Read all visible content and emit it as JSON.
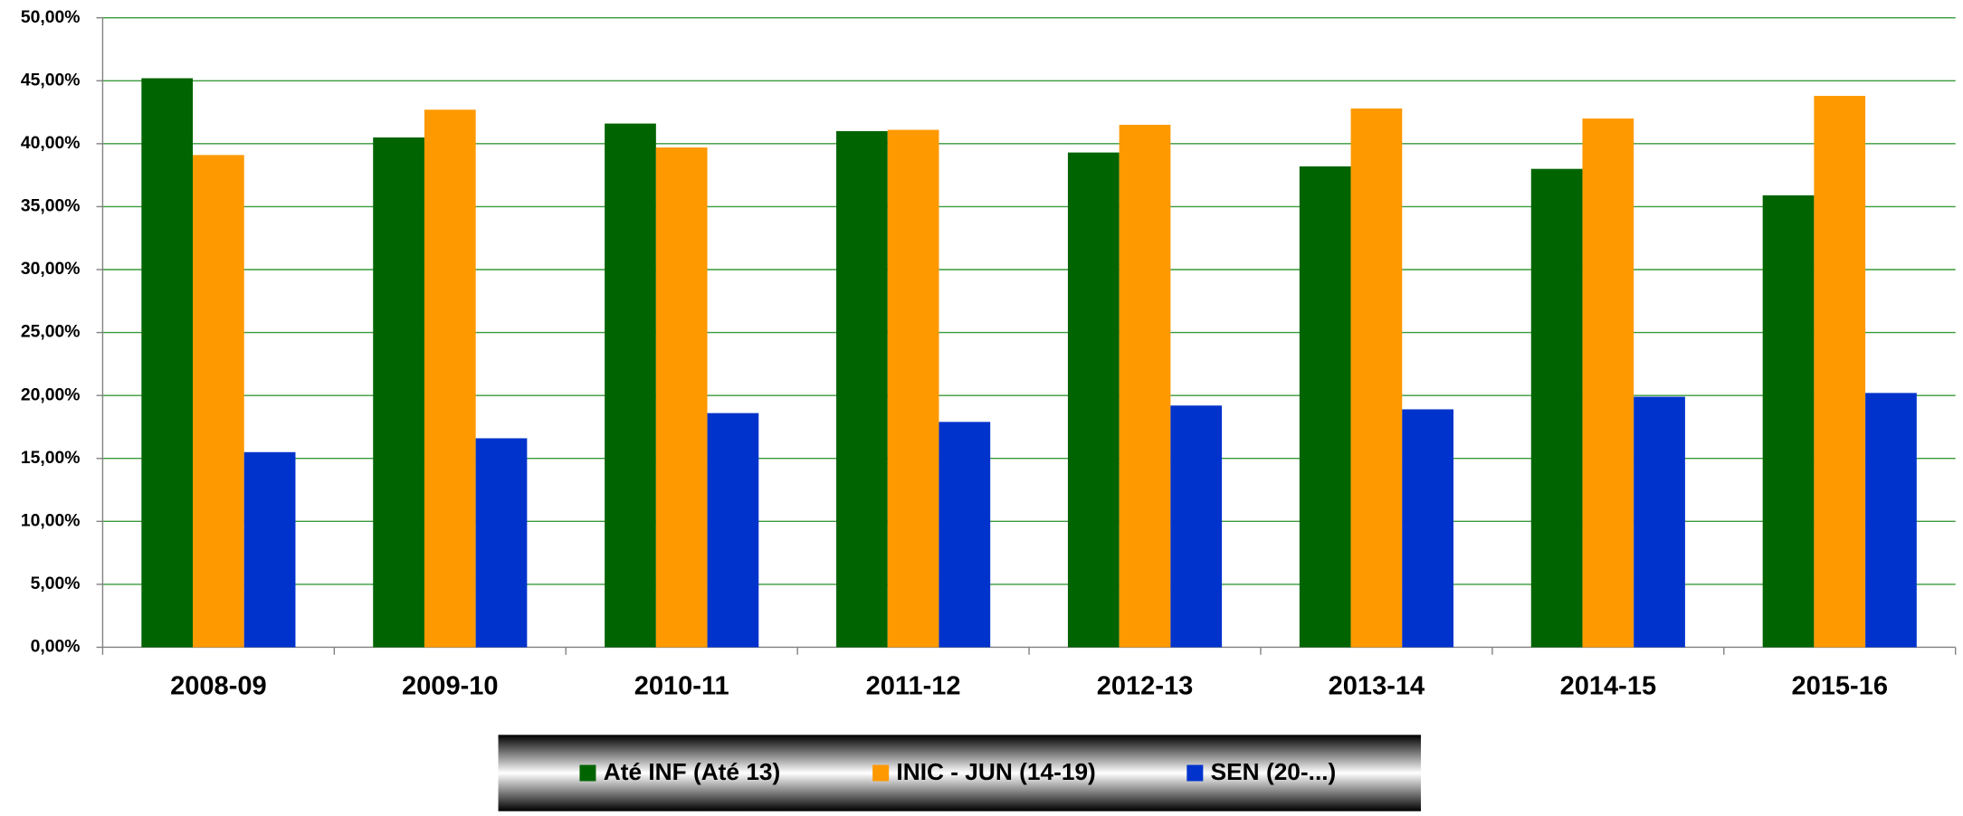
{
  "chart_data": {
    "type": "bar",
    "categories": [
      "2008-09",
      "2009-10",
      "2010-11",
      "2011-12",
      "2012-13",
      "2013-14",
      "2014-15",
      "2015-16"
    ],
    "series": [
      {
        "name": "Até INF (Até 13)",
        "color": "#006400",
        "values": [
          45.2,
          40.5,
          41.6,
          41.0,
          39.3,
          38.2,
          38.0,
          35.9
        ]
      },
      {
        "name": "INIC - JUN (14-19)",
        "color": "#ff9900",
        "values": [
          39.1,
          42.7,
          39.7,
          41.1,
          41.5,
          42.8,
          42.0,
          43.8
        ]
      },
      {
        "name": "SEN (20-...)",
        "color": "#0033cc",
        "values": [
          15.5,
          16.6,
          18.6,
          17.9,
          19.2,
          18.9,
          19.9,
          20.2
        ]
      }
    ],
    "ylim": [
      0,
      50
    ],
    "yticks": [
      {
        "value": 0,
        "label": "0,00%"
      },
      {
        "value": 5,
        "label": "5,00%"
      },
      {
        "value": 10,
        "label": "10,00%"
      },
      {
        "value": 15,
        "label": "15,00%"
      },
      {
        "value": 20,
        "label": "20,00%"
      },
      {
        "value": 25,
        "label": "25,00%"
      },
      {
        "value": 30,
        "label": "30,00%"
      },
      {
        "value": 35,
        "label": "35,00%"
      },
      {
        "value": 40,
        "label": "40,00%"
      },
      {
        "value": 45,
        "label": "45,00%"
      },
      {
        "value": 50,
        "label": "50,00%"
      }
    ],
    "grid": true,
    "legend": "bottom"
  }
}
